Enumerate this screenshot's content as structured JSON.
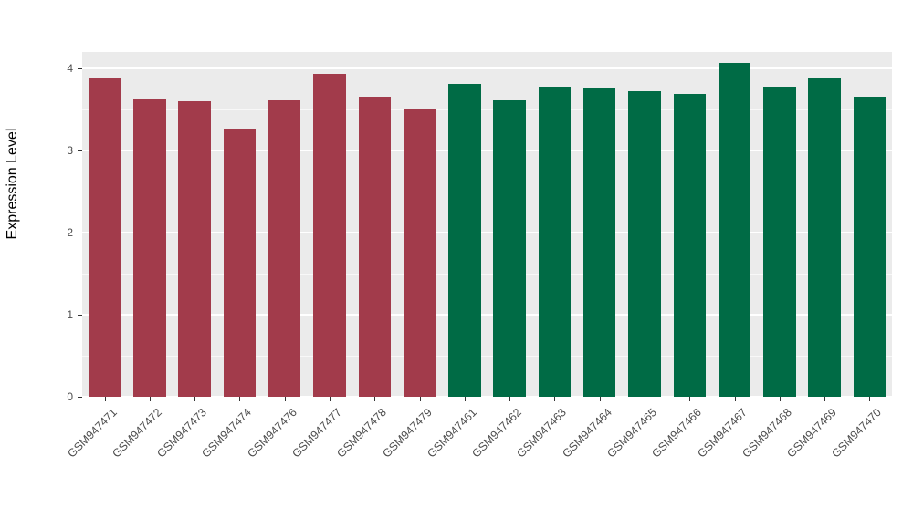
{
  "chart_data": {
    "type": "bar",
    "title": "",
    "xlabel": "",
    "ylabel": "Expression Level",
    "ylim": [
      0,
      4.2
    ],
    "yticks": [
      0,
      1,
      2,
      3,
      4
    ],
    "grid": true,
    "legend": "none",
    "panel_background": "#EBEBEB",
    "gridline_color": "#FFFFFF",
    "categories": [
      "GSM947471",
      "GSM947472",
      "GSM947473",
      "GSM947474",
      "GSM947476",
      "GSM947477",
      "GSM947478",
      "GSM947479",
      "GSM947461",
      "GSM947462",
      "GSM947463",
      "GSM947464",
      "GSM947465",
      "GSM947466",
      "GSM947467",
      "GSM947468",
      "GSM947469",
      "GSM947470"
    ],
    "values": [
      3.88,
      3.63,
      3.6,
      3.27,
      3.61,
      3.93,
      3.66,
      3.5,
      3.81,
      3.61,
      3.78,
      3.77,
      3.72,
      3.69,
      4.07,
      3.78,
      3.88,
      3.66
    ],
    "bar_colors": [
      "#A23B4B",
      "#A23B4B",
      "#A23B4B",
      "#A23B4B",
      "#A23B4B",
      "#A23B4B",
      "#A23B4B",
      "#A23B4B",
      "#006B45",
      "#006B45",
      "#006B45",
      "#006B45",
      "#006B45",
      "#006B45",
      "#006B45",
      "#006B45",
      "#006B45",
      "#006B45"
    ],
    "group_colors": {
      "red_group": "#A23B4B",
      "green_group": "#006B45"
    }
  },
  "layout_hints": {
    "x_label_rotation_deg": -45
  }
}
